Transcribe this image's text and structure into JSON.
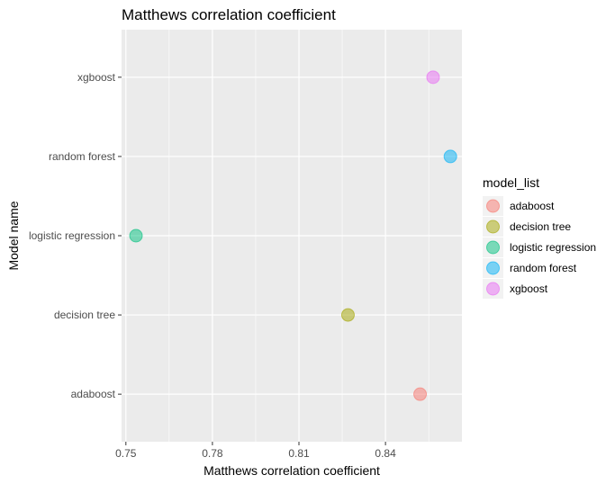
{
  "chart_data": {
    "type": "scatter",
    "title": "Matthews correlation coefficient",
    "xlabel": "Matthews correlation coefficient",
    "ylabel": "Model name",
    "xlim": [
      0.7485,
      0.8665
    ],
    "x_ticks": [
      0.75,
      0.78,
      0.81,
      0.84
    ],
    "x_tick_labels": [
      "0.75",
      "0.78",
      "0.81",
      "0.84"
    ],
    "categories": [
      "adaboost",
      "decision tree",
      "logistic regression",
      "random forest",
      "xgboost"
    ],
    "points": [
      {
        "category": "adaboost",
        "x": 0.852,
        "color": "#F8766D"
      },
      {
        "category": "decision tree",
        "x": 0.827,
        "color": "#A3A500"
      },
      {
        "category": "logistic regression",
        "x": 0.7535,
        "color": "#00BF7D"
      },
      {
        "category": "random forest",
        "x": 0.8625,
        "color": "#00B0F6"
      },
      {
        "category": "xgboost",
        "x": 0.8565,
        "color": "#E76BF3"
      }
    ],
    "legend": {
      "title": "model_list",
      "placement": "right",
      "entries": [
        {
          "label": "adaboost",
          "color": "#F8766D"
        },
        {
          "label": "decision tree",
          "color": "#A3A500"
        },
        {
          "label": "logistic regression",
          "color": "#00BF7D"
        },
        {
          "label": "random forest",
          "color": "#00B0F6"
        },
        {
          "label": "xgboost",
          "color": "#E76BF3"
        }
      ]
    },
    "grid": true,
    "panel_background": "#EBEBEB"
  }
}
